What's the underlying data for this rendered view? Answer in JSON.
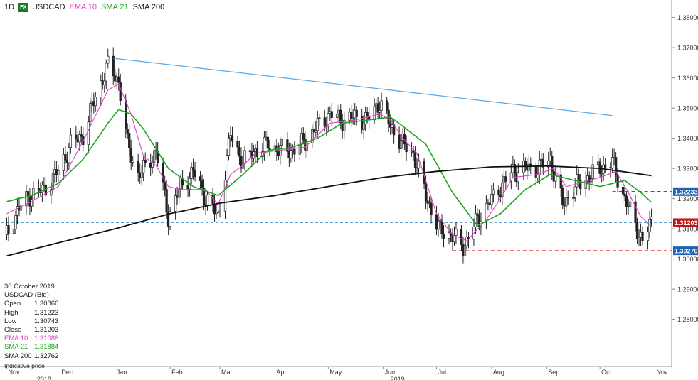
{
  "header": {
    "timeframe": "1D",
    "badge": "FX",
    "symbol": "USDCAD",
    "ema_label": "EMA 10",
    "sma21_label": "SMA 21",
    "sma200_label": "SMA 200"
  },
  "colors": {
    "ema10": "#e040c8",
    "sma21": "#1ea51e",
    "sma200": "#111111",
    "trendline": "#5aa8e6",
    "candle_up": "#ffffff",
    "candle_down": "#222222",
    "resistance": "#e02020",
    "support": "#e02020",
    "current": "#2a7fc9",
    "badge": "#1a7a2e"
  },
  "info": {
    "date": "30 October 2019",
    "instrument": "USDCAD (Bid)",
    "rows": [
      {
        "key": "Open",
        "value": "1.30866",
        "color": "#222222"
      },
      {
        "key": "High",
        "value": "1.31223",
        "color": "#222222"
      },
      {
        "key": "Low",
        "value": "1.30743",
        "color": "#222222"
      },
      {
        "key": "Close",
        "value": "1.31203",
        "color": "#222222"
      },
      {
        "key": "EMA 10",
        "value": "1.31088",
        "color": "#e040c8"
      },
      {
        "key": "SMA 21",
        "value": "1.31884",
        "color": "#1ea51e"
      },
      {
        "key": "SMA 200",
        "value": "1.32762",
        "color": "#111111"
      }
    ],
    "note": "Indicative price"
  },
  "chart_data": {
    "type": "candlestick",
    "title": "",
    "x_ticks": [
      "Nov",
      "Dec",
      "Jan",
      "Feb",
      "Mar",
      "Apr",
      "May",
      "Jun",
      "Jul",
      "Aug",
      "Sep",
      "Oct",
      "Nov"
    ],
    "year_labels": [
      "2018",
      "2019"
    ],
    "y_ticks": [
      "1.38000",
      "1.37000",
      "1.36000",
      "1.35000",
      "1.34000",
      "1.33000",
      "1.32000",
      "1.31000",
      "1.30000",
      "1.29000",
      "1.28000"
    ],
    "ylim": [
      1.2735,
      1.3835
    ],
    "grid": false,
    "price_labels": [
      {
        "name": "resistance",
        "value": 1.3223,
        "label": "1.32233"
      },
      {
        "name": "current",
        "value": 1.31203,
        "label": "1.31203"
      },
      {
        "name": "support",
        "value": 1.3027,
        "label": "1.30270"
      }
    ],
    "trendline": {
      "start": [
        "2018-12-31",
        1.3665
      ],
      "end": [
        "2019-10-08",
        1.3475
      ]
    },
    "series": [
      {
        "name": "USDCAD",
        "kind": "close",
        "points": [
          [
            "2018-11-01",
            1.308
          ],
          [
            "2018-11-07",
            1.316
          ],
          [
            "2018-11-14",
            1.321
          ],
          [
            "2018-11-22",
            1.323
          ],
          [
            "2018-11-30",
            1.329
          ],
          [
            "2018-12-07",
            1.338
          ],
          [
            "2018-12-14",
            1.341
          ],
          [
            "2018-12-21",
            1.354
          ],
          [
            "2018-12-28",
            1.364
          ],
          [
            "2019-01-03",
            1.359
          ],
          [
            "2019-01-08",
            1.338
          ],
          [
            "2019-01-14",
            1.328
          ],
          [
            "2019-01-18",
            1.33
          ],
          [
            "2019-01-24",
            1.336
          ],
          [
            "2019-01-31",
            1.314
          ],
          [
            "2019-02-07",
            1.324
          ],
          [
            "2019-02-14",
            1.329
          ],
          [
            "2019-02-21",
            1.32
          ],
          [
            "2019-02-28",
            1.314
          ],
          [
            "2019-03-07",
            1.341
          ],
          [
            "2019-03-14",
            1.332
          ],
          [
            "2019-03-21",
            1.336
          ],
          [
            "2019-03-28",
            1.338
          ],
          [
            "2019-04-04",
            1.336
          ],
          [
            "2019-04-11",
            1.336
          ],
          [
            "2019-04-18",
            1.339
          ],
          [
            "2019-04-25",
            1.344
          ],
          [
            "2019-05-02",
            1.348
          ],
          [
            "2019-05-09",
            1.346
          ],
          [
            "2019-05-16",
            1.347
          ],
          [
            "2019-05-23",
            1.346
          ],
          [
            "2019-05-30",
            1.352
          ],
          [
            "2019-06-05",
            1.344
          ],
          [
            "2019-06-12",
            1.338
          ],
          [
            "2019-06-18",
            1.335
          ],
          [
            "2019-06-25",
            1.321
          ],
          [
            "2019-07-02",
            1.31
          ],
          [
            "2019-07-09",
            1.308
          ],
          [
            "2019-07-16",
            1.304
          ],
          [
            "2019-07-23",
            1.312
          ],
          [
            "2019-07-30",
            1.318
          ],
          [
            "2019-08-06",
            1.324
          ],
          [
            "2019-08-13",
            1.329
          ],
          [
            "2019-08-20",
            1.33
          ],
          [
            "2019-08-27",
            1.33
          ],
          [
            "2019-09-03",
            1.333
          ],
          [
            "2019-09-10",
            1.318
          ],
          [
            "2019-09-17",
            1.324
          ],
          [
            "2019-09-24",
            1.327
          ],
          [
            "2019-10-01",
            1.33
          ],
          [
            "2019-10-08",
            1.332
          ],
          [
            "2019-10-15",
            1.32
          ],
          [
            "2019-10-22",
            1.31
          ],
          [
            "2019-10-25",
            1.306
          ],
          [
            "2019-10-30",
            1.312
          ]
        ]
      },
      {
        "name": "EMA 10",
        "kind": "line",
        "points": [
          [
            "2018-11-01",
            1.315
          ],
          [
            "2018-11-15",
            1.319
          ],
          [
            "2018-11-30",
            1.324
          ],
          [
            "2018-12-14",
            1.339
          ],
          [
            "2018-12-28",
            1.356
          ],
          [
            "2019-01-03",
            1.358
          ],
          [
            "2019-01-10",
            1.348
          ],
          [
            "2019-01-17",
            1.334
          ],
          [
            "2019-01-24",
            1.331
          ],
          [
            "2019-01-31",
            1.324
          ],
          [
            "2019-02-07",
            1.323
          ],
          [
            "2019-02-21",
            1.323
          ],
          [
            "2019-02-28",
            1.318
          ],
          [
            "2019-03-07",
            1.328
          ],
          [
            "2019-03-14",
            1.331
          ],
          [
            "2019-03-21",
            1.335
          ],
          [
            "2019-04-04",
            1.336
          ],
          [
            "2019-04-18",
            1.337
          ],
          [
            "2019-05-02",
            1.345
          ],
          [
            "2019-05-16",
            1.346
          ],
          [
            "2019-05-30",
            1.348
          ],
          [
            "2019-06-05",
            1.346
          ],
          [
            "2019-06-12",
            1.34
          ],
          [
            "2019-06-20",
            1.335
          ],
          [
            "2019-07-01",
            1.315
          ],
          [
            "2019-07-10",
            1.308
          ],
          [
            "2019-07-18",
            1.306
          ],
          [
            "2019-07-29",
            1.313
          ],
          [
            "2019-08-06",
            1.32
          ],
          [
            "2019-08-13",
            1.327
          ],
          [
            "2019-08-27",
            1.328
          ],
          [
            "2019-09-05",
            1.33
          ],
          [
            "2019-09-12",
            1.324
          ],
          [
            "2019-09-19",
            1.325
          ],
          [
            "2019-10-01",
            1.327
          ],
          [
            "2019-10-10",
            1.329
          ],
          [
            "2019-10-17",
            1.322
          ],
          [
            "2019-10-24",
            1.314
          ],
          [
            "2019-10-30",
            1.3109
          ]
        ]
      },
      {
        "name": "SMA 21",
        "kind": "line",
        "points": [
          [
            "2018-11-01",
            1.319
          ],
          [
            "2018-11-15",
            1.321
          ],
          [
            "2018-11-30",
            1.325
          ],
          [
            "2018-12-14",
            1.333
          ],
          [
            "2018-12-28",
            1.345
          ],
          [
            "2019-01-03",
            1.3495
          ],
          [
            "2019-01-10",
            1.348
          ],
          [
            "2019-01-17",
            1.343
          ],
          [
            "2019-01-31",
            1.33
          ],
          [
            "2019-02-14",
            1.324
          ],
          [
            "2019-02-28",
            1.321
          ],
          [
            "2019-03-14",
            1.328
          ],
          [
            "2019-03-28",
            1.336
          ],
          [
            "2019-04-11",
            1.337
          ],
          [
            "2019-04-25",
            1.34
          ],
          [
            "2019-05-09",
            1.345
          ],
          [
            "2019-05-23",
            1.346
          ],
          [
            "2019-06-05",
            1.347
          ],
          [
            "2019-06-12",
            1.344
          ],
          [
            "2019-06-25",
            1.338
          ],
          [
            "2019-07-10",
            1.322
          ],
          [
            "2019-07-24",
            1.311
          ],
          [
            "2019-08-06",
            1.315
          ],
          [
            "2019-08-20",
            1.323
          ],
          [
            "2019-09-03",
            1.328
          ],
          [
            "2019-09-17",
            1.326
          ],
          [
            "2019-10-01",
            1.324
          ],
          [
            "2019-10-15",
            1.326
          ],
          [
            "2019-10-24",
            1.322
          ],
          [
            "2019-10-30",
            1.3188
          ]
        ]
      },
      {
        "name": "SMA 200",
        "kind": "line",
        "points": [
          [
            "2018-11-01",
            1.301
          ],
          [
            "2018-12-01",
            1.3055
          ],
          [
            "2019-01-01",
            1.31
          ],
          [
            "2019-02-01",
            1.315
          ],
          [
            "2019-03-01",
            1.3185
          ],
          [
            "2019-04-01",
            1.321
          ],
          [
            "2019-05-01",
            1.324
          ],
          [
            "2019-06-01",
            1.327
          ],
          [
            "2019-07-01",
            1.329
          ],
          [
            "2019-08-01",
            1.3305
          ],
          [
            "2019-09-01",
            1.3308
          ],
          [
            "2019-10-01",
            1.33
          ],
          [
            "2019-10-30",
            1.3276
          ]
        ]
      }
    ]
  }
}
